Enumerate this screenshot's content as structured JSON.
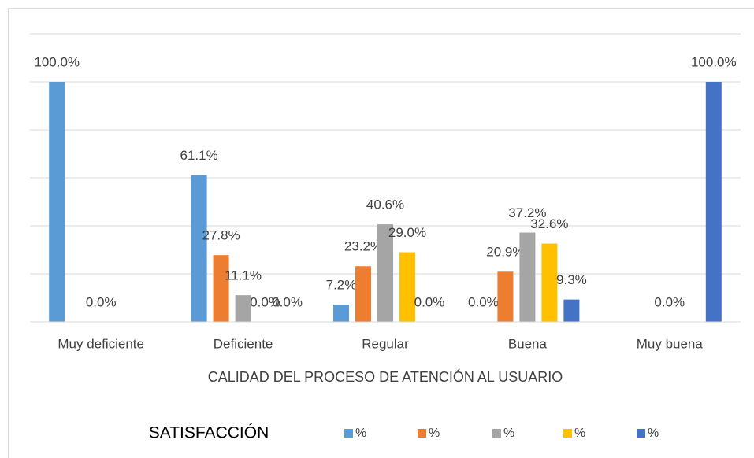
{
  "chart_data": {
    "type": "bar",
    "categories": [
      "Muy deficiente",
      "Deficiente",
      "Regular",
      "Buena",
      "Muy buena"
    ],
    "x_label": "CALIDAD DEL PROCESO DE ATENCIÓN AL USUARIO",
    "legend_title": "SATISFACCIÓN",
    "series": [
      {
        "name": "%",
        "color": "#5b9bd5",
        "values": [
          100,
          61.1,
          7.2,
          0,
          null
        ],
        "value_labels": [
          "100.0%",
          "61.1%",
          "7.2%",
          "0.0%",
          null
        ]
      },
      {
        "name": "%",
        "color": "#ed7d31",
        "values": [
          null,
          27.8,
          23.2,
          20.9,
          null
        ],
        "value_labels": [
          null,
          "27.8%",
          "23.2%",
          "20.9%",
          null
        ]
      },
      {
        "name": "%",
        "color": "#a5a5a5",
        "values": [
          0,
          11.1,
          40.6,
          37.2,
          0
        ],
        "value_labels": [
          "0.0%",
          "11.1%",
          "40.6%",
          "37.2%",
          "0.0%"
        ]
      },
      {
        "name": "%",
        "color": "#ffc000",
        "values": [
          null,
          0,
          29.0,
          32.6,
          null
        ],
        "value_labels": [
          null,
          "0.0%",
          "29.0%",
          "32.6%",
          null
        ]
      },
      {
        "name": "%",
        "color": "#4472c4",
        "values": [
          null,
          0,
          0,
          9.3,
          100
        ],
        "value_labels": [
          null,
          "0.0%",
          "0.0%",
          "9.3%",
          "100.0%"
        ]
      }
    ],
    "ylim": [
      0,
      120
    ],
    "yticks": [
      0,
      20,
      40,
      60,
      80,
      100,
      120
    ],
    "grid": true
  }
}
